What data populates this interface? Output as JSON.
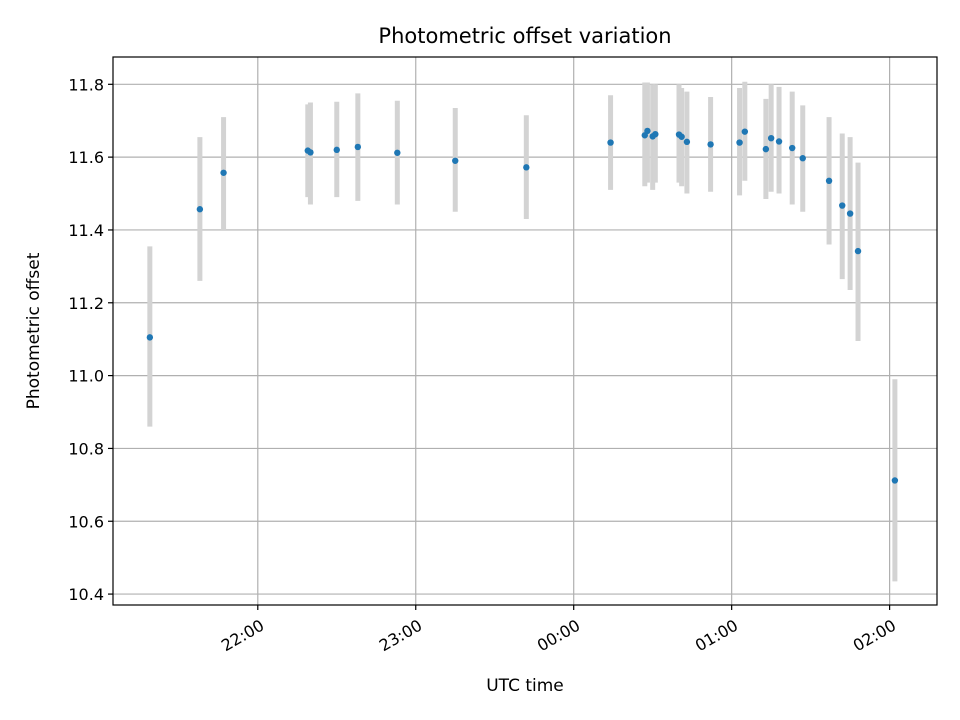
{
  "chart_data": {
    "type": "scatter",
    "title": "Photometric offset variation",
    "xlabel": "UTC time",
    "ylabel": "Photometric offset",
    "xlim": [
      "21:05",
      "02:18"
    ],
    "ylim": [
      10.37,
      11.875
    ],
    "x_ticks": [
      "22:00",
      "23:00",
      "00:00",
      "01:00",
      "02:00"
    ],
    "y_ticks": [
      10.4,
      10.6,
      10.8,
      11.0,
      11.2,
      11.4,
      11.6,
      11.8
    ],
    "y_tick_labels": [
      "10.4",
      "10.6",
      "10.8",
      "11.0",
      "11.2",
      "11.4",
      "11.6",
      "11.8"
    ],
    "grid": true,
    "marker_color": "#1f77b4",
    "errorbar_color": "#d3d3d3",
    "points": [
      {
        "time": "21:19",
        "y": 11.105,
        "low": 10.86,
        "high": 11.355
      },
      {
        "time": "21:38",
        "y": 11.457,
        "low": 11.26,
        "high": 11.655
      },
      {
        "time": "21:47",
        "y": 11.557,
        "low": 11.4,
        "high": 11.71
      },
      {
        "time": "22:19",
        "y": 11.618,
        "low": 11.49,
        "high": 11.745
      },
      {
        "time": "22:20",
        "y": 11.613,
        "low": 11.47,
        "high": 11.75
      },
      {
        "time": "22:30",
        "y": 11.62,
        "low": 11.49,
        "high": 11.752
      },
      {
        "time": "22:38",
        "y": 11.628,
        "low": 11.48,
        "high": 11.775
      },
      {
        "time": "22:53",
        "y": 11.612,
        "low": 11.47,
        "high": 11.755
      },
      {
        "time": "23:15",
        "y": 11.59,
        "low": 11.45,
        "high": 11.735
      },
      {
        "time": "23:42",
        "y": 11.572,
        "low": 11.43,
        "high": 11.715
      },
      {
        "time": "00:14",
        "y": 11.64,
        "low": 11.51,
        "high": 11.77
      },
      {
        "time": "00:27",
        "y": 11.66,
        "low": 11.52,
        "high": 11.805
      },
      {
        "time": "00:28",
        "y": 11.672,
        "low": 11.53,
        "high": 11.805
      },
      {
        "time": "00:30",
        "y": 11.657,
        "low": 11.51,
        "high": 11.8
      },
      {
        "time": "00:31",
        "y": 11.663,
        "low": 11.53,
        "high": 11.8
      },
      {
        "time": "00:40",
        "y": 11.662,
        "low": 11.53,
        "high": 11.8
      },
      {
        "time": "00:41",
        "y": 11.656,
        "low": 11.52,
        "high": 11.79
      },
      {
        "time": "00:43",
        "y": 11.642,
        "low": 11.5,
        "high": 11.78
      },
      {
        "time": "00:52",
        "y": 11.635,
        "low": 11.505,
        "high": 11.765
      },
      {
        "time": "01:03",
        "y": 11.64,
        "low": 11.495,
        "high": 11.79
      },
      {
        "time": "01:05",
        "y": 11.67,
        "low": 11.535,
        "high": 11.807
      },
      {
        "time": "01:13",
        "y": 11.622,
        "low": 11.485,
        "high": 11.76
      },
      {
        "time": "01:15",
        "y": 11.652,
        "low": 11.505,
        "high": 11.8
      },
      {
        "time": "01:18",
        "y": 11.643,
        "low": 11.5,
        "high": 11.793
      },
      {
        "time": "01:23",
        "y": 11.625,
        "low": 11.47,
        "high": 11.78
      },
      {
        "time": "01:27",
        "y": 11.597,
        "low": 11.45,
        "high": 11.742
      },
      {
        "time": "01:37",
        "y": 11.535,
        "low": 11.36,
        "high": 11.71
      },
      {
        "time": "01:42",
        "y": 11.467,
        "low": 11.265,
        "high": 11.665
      },
      {
        "time": "01:45",
        "y": 11.445,
        "low": 11.235,
        "high": 11.655
      },
      {
        "time": "01:48",
        "y": 11.342,
        "low": 11.095,
        "high": 11.585
      },
      {
        "time": "02:02",
        "y": 10.712,
        "low": 10.435,
        "high": 10.99
      }
    ]
  }
}
